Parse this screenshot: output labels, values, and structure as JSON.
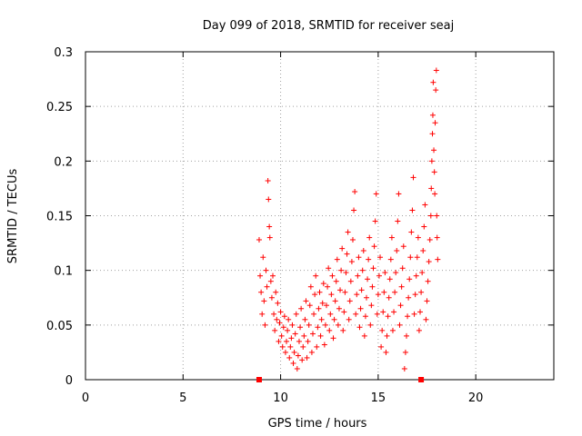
{
  "chart_data": {
    "type": "scatter",
    "title": "Day 099 of 2018, SRMTID for receiver seaj",
    "xlabel": "GPS time / hours",
    "ylabel": "SRMTID / TECUs",
    "xlim": [
      0,
      24
    ],
    "ylim": [
      0,
      0.3
    ],
    "xticks": [
      0,
      5,
      10,
      15,
      20
    ],
    "xtick_labels": [
      "0",
      "5",
      "10",
      "15",
      "20"
    ],
    "yticks": [
      0,
      0.05,
      0.1,
      0.15,
      0.2,
      0.25,
      0.3
    ],
    "ytick_labels": [
      "0",
      "0.05",
      "0.1",
      "0.15",
      "0.2",
      "0.25",
      "0.3"
    ],
    "grid": true,
    "marker": "plus",
    "color": "#ff0000",
    "axis_markers": [
      {
        "x": 8.9,
        "y": 0
      },
      {
        "x": 17.2,
        "y": 0
      }
    ],
    "series": [
      {
        "name": "SRMTID",
        "points": [
          [
            8.9,
            0.128
          ],
          [
            8.95,
            0.095
          ],
          [
            9.0,
            0.08
          ],
          [
            9.05,
            0.06
          ],
          [
            9.1,
            0.112
          ],
          [
            9.15,
            0.072
          ],
          [
            9.2,
            0.05
          ],
          [
            9.25,
            0.1
          ],
          [
            9.3,
            0.085
          ],
          [
            9.35,
            0.182
          ],
          [
            9.38,
            0.165
          ],
          [
            9.42,
            0.14
          ],
          [
            9.45,
            0.13
          ],
          [
            9.5,
            0.09
          ],
          [
            9.55,
            0.075
          ],
          [
            9.6,
            0.095
          ],
          [
            9.65,
            0.06
          ],
          [
            9.7,
            0.045
          ],
          [
            9.75,
            0.08
          ],
          [
            9.8,
            0.055
          ],
          [
            9.85,
            0.07
          ],
          [
            9.9,
            0.035
          ],
          [
            9.95,
            0.052
          ],
          [
            10.0,
            0.062
          ],
          [
            10.05,
            0.04
          ],
          [
            10.1,
            0.03
          ],
          [
            10.15,
            0.048
          ],
          [
            10.2,
            0.058
          ],
          [
            10.25,
            0.025
          ],
          [
            10.3,
            0.035
          ],
          [
            10.35,
            0.045
          ],
          [
            10.4,
            0.055
          ],
          [
            10.45,
            0.02
          ],
          [
            10.5,
            0.03
          ],
          [
            10.55,
            0.038
          ],
          [
            10.6,
            0.05
          ],
          [
            10.65,
            0.015
          ],
          [
            10.7,
            0.025
          ],
          [
            10.75,
            0.042
          ],
          [
            10.8,
            0.06
          ],
          [
            10.85,
            0.01
          ],
          [
            10.9,
            0.022
          ],
          [
            10.95,
            0.035
          ],
          [
            11.0,
            0.048
          ],
          [
            11.05,
            0.065
          ],
          [
            11.1,
            0.018
          ],
          [
            11.15,
            0.03
          ],
          [
            11.2,
            0.04
          ],
          [
            11.25,
            0.055
          ],
          [
            11.3,
            0.072
          ],
          [
            11.35,
            0.02
          ],
          [
            11.4,
            0.035
          ],
          [
            11.45,
            0.05
          ],
          [
            11.5,
            0.068
          ],
          [
            11.55,
            0.085
          ],
          [
            11.6,
            0.025
          ],
          [
            11.65,
            0.042
          ],
          [
            11.7,
            0.06
          ],
          [
            11.75,
            0.078
          ],
          [
            11.8,
            0.095
          ],
          [
            11.85,
            0.03
          ],
          [
            11.9,
            0.048
          ],
          [
            11.95,
            0.065
          ],
          [
            12.0,
            0.08
          ],
          [
            12.05,
            0.04
          ],
          [
            12.1,
            0.055
          ],
          [
            12.15,
            0.07
          ],
          [
            12.2,
            0.088
          ],
          [
            12.25,
            0.032
          ],
          [
            12.3,
            0.05
          ],
          [
            12.35,
            0.068
          ],
          [
            12.4,
            0.085
          ],
          [
            12.45,
            0.102
          ],
          [
            12.5,
            0.045
          ],
          [
            12.55,
            0.06
          ],
          [
            12.6,
            0.078
          ],
          [
            12.65,
            0.095
          ],
          [
            12.7,
            0.038
          ],
          [
            12.75,
            0.055
          ],
          [
            12.8,
            0.072
          ],
          [
            12.85,
            0.09
          ],
          [
            12.9,
            0.11
          ],
          [
            12.95,
            0.05
          ],
          [
            13.0,
            0.065
          ],
          [
            13.05,
            0.082
          ],
          [
            13.1,
            0.1
          ],
          [
            13.15,
            0.12
          ],
          [
            13.2,
            0.045
          ],
          [
            13.25,
            0.062
          ],
          [
            13.3,
            0.08
          ],
          [
            13.35,
            0.098
          ],
          [
            13.4,
            0.115
          ],
          [
            13.45,
            0.135
          ],
          [
            13.5,
            0.055
          ],
          [
            13.55,
            0.072
          ],
          [
            13.6,
            0.09
          ],
          [
            13.65,
            0.108
          ],
          [
            13.7,
            0.128
          ],
          [
            13.75,
            0.155
          ],
          [
            13.8,
            0.172
          ],
          [
            13.85,
            0.06
          ],
          [
            13.9,
            0.078
          ],
          [
            13.95,
            0.095
          ],
          [
            14.0,
            0.112
          ],
          [
            14.05,
            0.048
          ],
          [
            14.1,
            0.065
          ],
          [
            14.15,
            0.082
          ],
          [
            14.2,
            0.1
          ],
          [
            14.25,
            0.118
          ],
          [
            14.3,
            0.04
          ],
          [
            14.35,
            0.058
          ],
          [
            14.4,
            0.075
          ],
          [
            14.45,
            0.092
          ],
          [
            14.5,
            0.11
          ],
          [
            14.55,
            0.13
          ],
          [
            14.6,
            0.05
          ],
          [
            14.65,
            0.068
          ],
          [
            14.7,
            0.085
          ],
          [
            14.75,
            0.102
          ],
          [
            14.8,
            0.122
          ],
          [
            14.85,
            0.145
          ],
          [
            14.9,
            0.17
          ],
          [
            14.95,
            0.06
          ],
          [
            15.0,
            0.078
          ],
          [
            15.05,
            0.095
          ],
          [
            15.1,
            0.112
          ],
          [
            15.15,
            0.03
          ],
          [
            15.2,
            0.045
          ],
          [
            15.25,
            0.062
          ],
          [
            15.3,
            0.08
          ],
          [
            15.35,
            0.098
          ],
          [
            15.4,
            0.025
          ],
          [
            15.45,
            0.04
          ],
          [
            15.5,
            0.058
          ],
          [
            15.55,
            0.075
          ],
          [
            15.6,
            0.092
          ],
          [
            15.65,
            0.11
          ],
          [
            15.7,
            0.13
          ],
          [
            15.75,
            0.045
          ],
          [
            15.8,
            0.062
          ],
          [
            15.85,
            0.08
          ],
          [
            15.9,
            0.098
          ],
          [
            15.95,
            0.118
          ],
          [
            16.0,
            0.145
          ],
          [
            16.05,
            0.17
          ],
          [
            16.1,
            0.05
          ],
          [
            16.15,
            0.068
          ],
          [
            16.2,
            0.085
          ],
          [
            16.25,
            0.102
          ],
          [
            16.3,
            0.122
          ],
          [
            16.35,
            0.01
          ],
          [
            16.4,
            0.025
          ],
          [
            16.45,
            0.04
          ],
          [
            16.5,
            0.058
          ],
          [
            16.55,
            0.075
          ],
          [
            16.6,
            0.092
          ],
          [
            16.65,
            0.112
          ],
          [
            16.7,
            0.135
          ],
          [
            16.75,
            0.155
          ],
          [
            16.8,
            0.185
          ],
          [
            16.85,
            0.06
          ],
          [
            16.9,
            0.078
          ],
          [
            16.95,
            0.095
          ],
          [
            17.0,
            0.112
          ],
          [
            17.05,
            0.13
          ],
          [
            17.1,
            0.045
          ],
          [
            17.15,
            0.062
          ],
          [
            17.2,
            0.08
          ],
          [
            17.25,
            0.098
          ],
          [
            17.3,
            0.118
          ],
          [
            17.35,
            0.14
          ],
          [
            17.4,
            0.16
          ],
          [
            17.45,
            0.055
          ],
          [
            17.5,
            0.072
          ],
          [
            17.55,
            0.09
          ],
          [
            17.6,
            0.108
          ],
          [
            17.65,
            0.128
          ],
          [
            17.7,
            0.15
          ],
          [
            17.72,
            0.175
          ],
          [
            17.75,
            0.2
          ],
          [
            17.78,
            0.225
          ],
          [
            17.8,
            0.242
          ],
          [
            17.82,
            0.272
          ],
          [
            17.85,
            0.21
          ],
          [
            17.88,
            0.19
          ],
          [
            17.9,
            0.17
          ],
          [
            17.92,
            0.235
          ],
          [
            17.95,
            0.265
          ],
          [
            17.98,
            0.283
          ],
          [
            18.0,
            0.15
          ],
          [
            18.02,
            0.13
          ],
          [
            18.05,
            0.11
          ]
        ]
      }
    ]
  }
}
